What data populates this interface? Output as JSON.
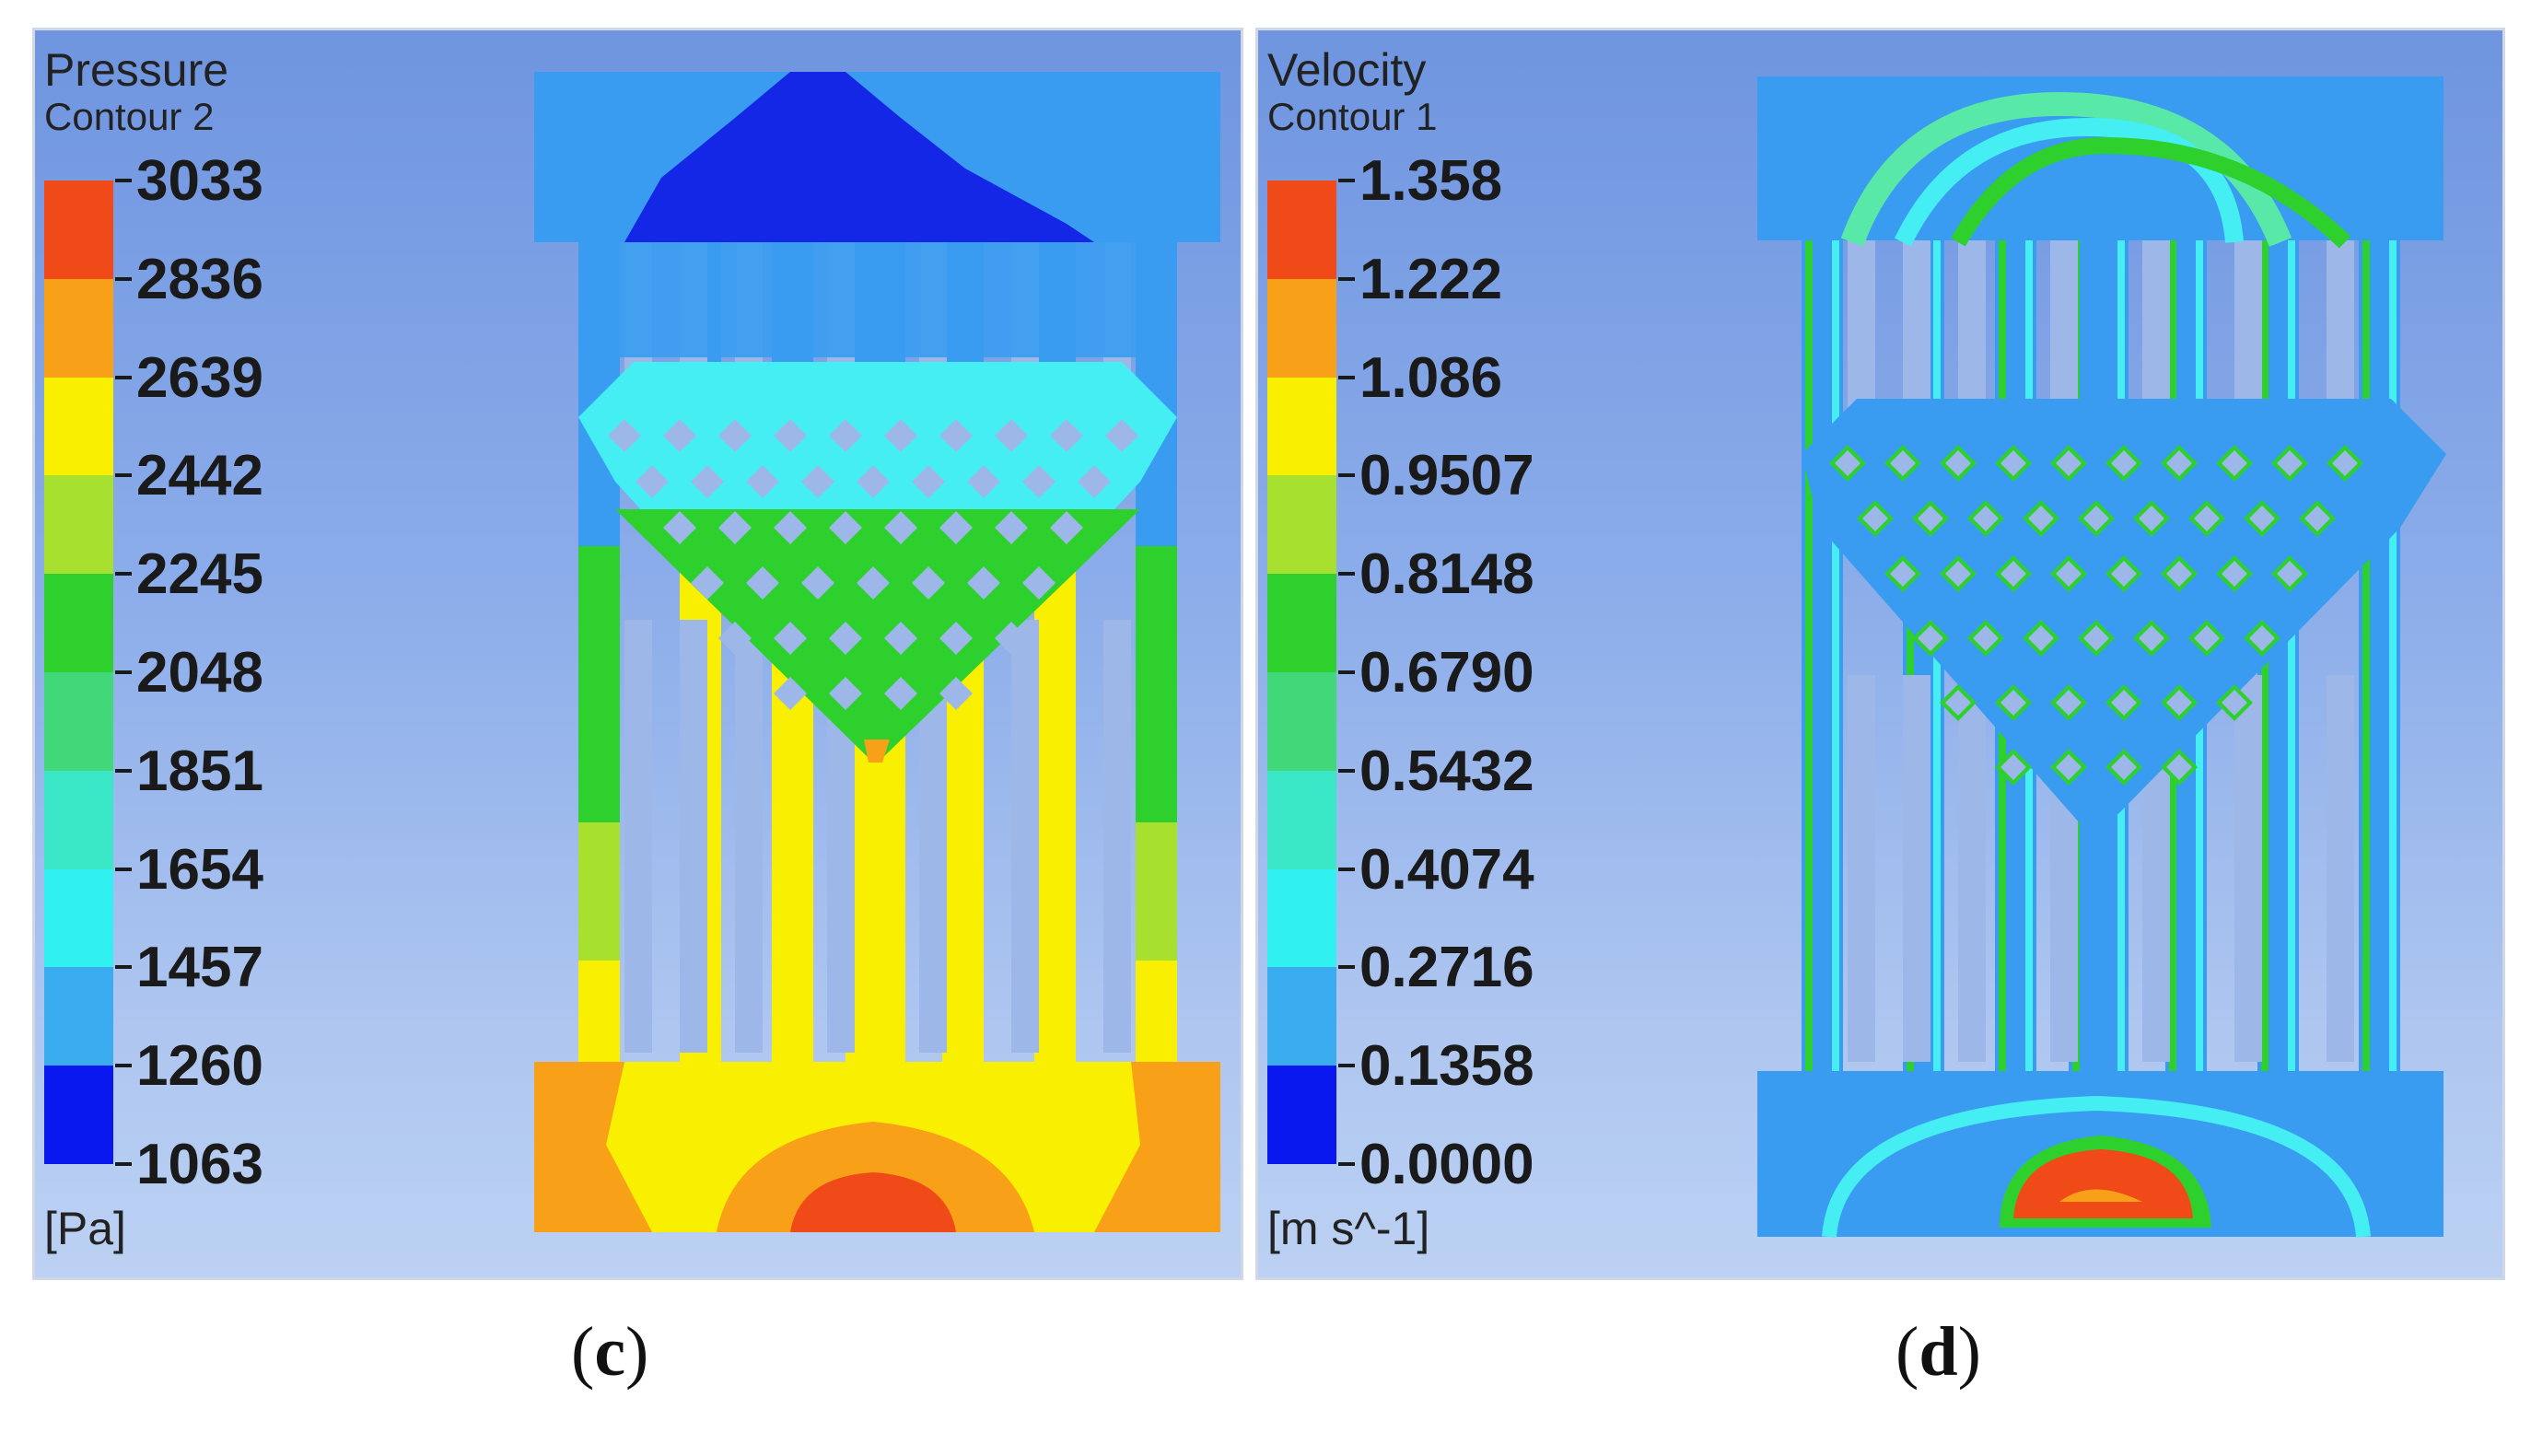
{
  "panels": [
    {
      "id": "c",
      "title": "Pressure",
      "subtitle": "Contour 2",
      "unit": "[Pa]",
      "levels": [
        "3033",
        "2836",
        "2639",
        "2442",
        "2245",
        "2048",
        "1851",
        "1654",
        "1457",
        "1260",
        "1063"
      ],
      "caption": "c"
    },
    {
      "id": "d",
      "title": "Velocity",
      "subtitle": "Contour 1",
      "unit": "[m s^-1]",
      "levels": [
        "1.358",
        "1.222",
        "1.086",
        "0.9507",
        "0.8148",
        "0.6790",
        "0.5432",
        "0.4074",
        "0.2716",
        "0.1358",
        "0.0000"
      ],
      "caption": "d"
    }
  ],
  "colormap": [
    "#f04a18",
    "#f8a018",
    "#f8f000",
    "#a8e030",
    "#2ed02e",
    "#40d878",
    "#3ae8c8",
    "#30f0f0",
    "#3aacf0",
    "#2660f0",
    "#0818ee"
  ],
  "palette": {
    "bg_blue": "#3a9cf0",
    "deep_blue": "#1426e6",
    "light_blue": "#58b2f4",
    "cyan": "#44eef2",
    "green": "#2ed02e",
    "yellowgreen": "#a8e030",
    "yellow": "#f8f000",
    "orange": "#f8a018",
    "red": "#f04a18",
    "hole": "#9db8e8"
  }
}
